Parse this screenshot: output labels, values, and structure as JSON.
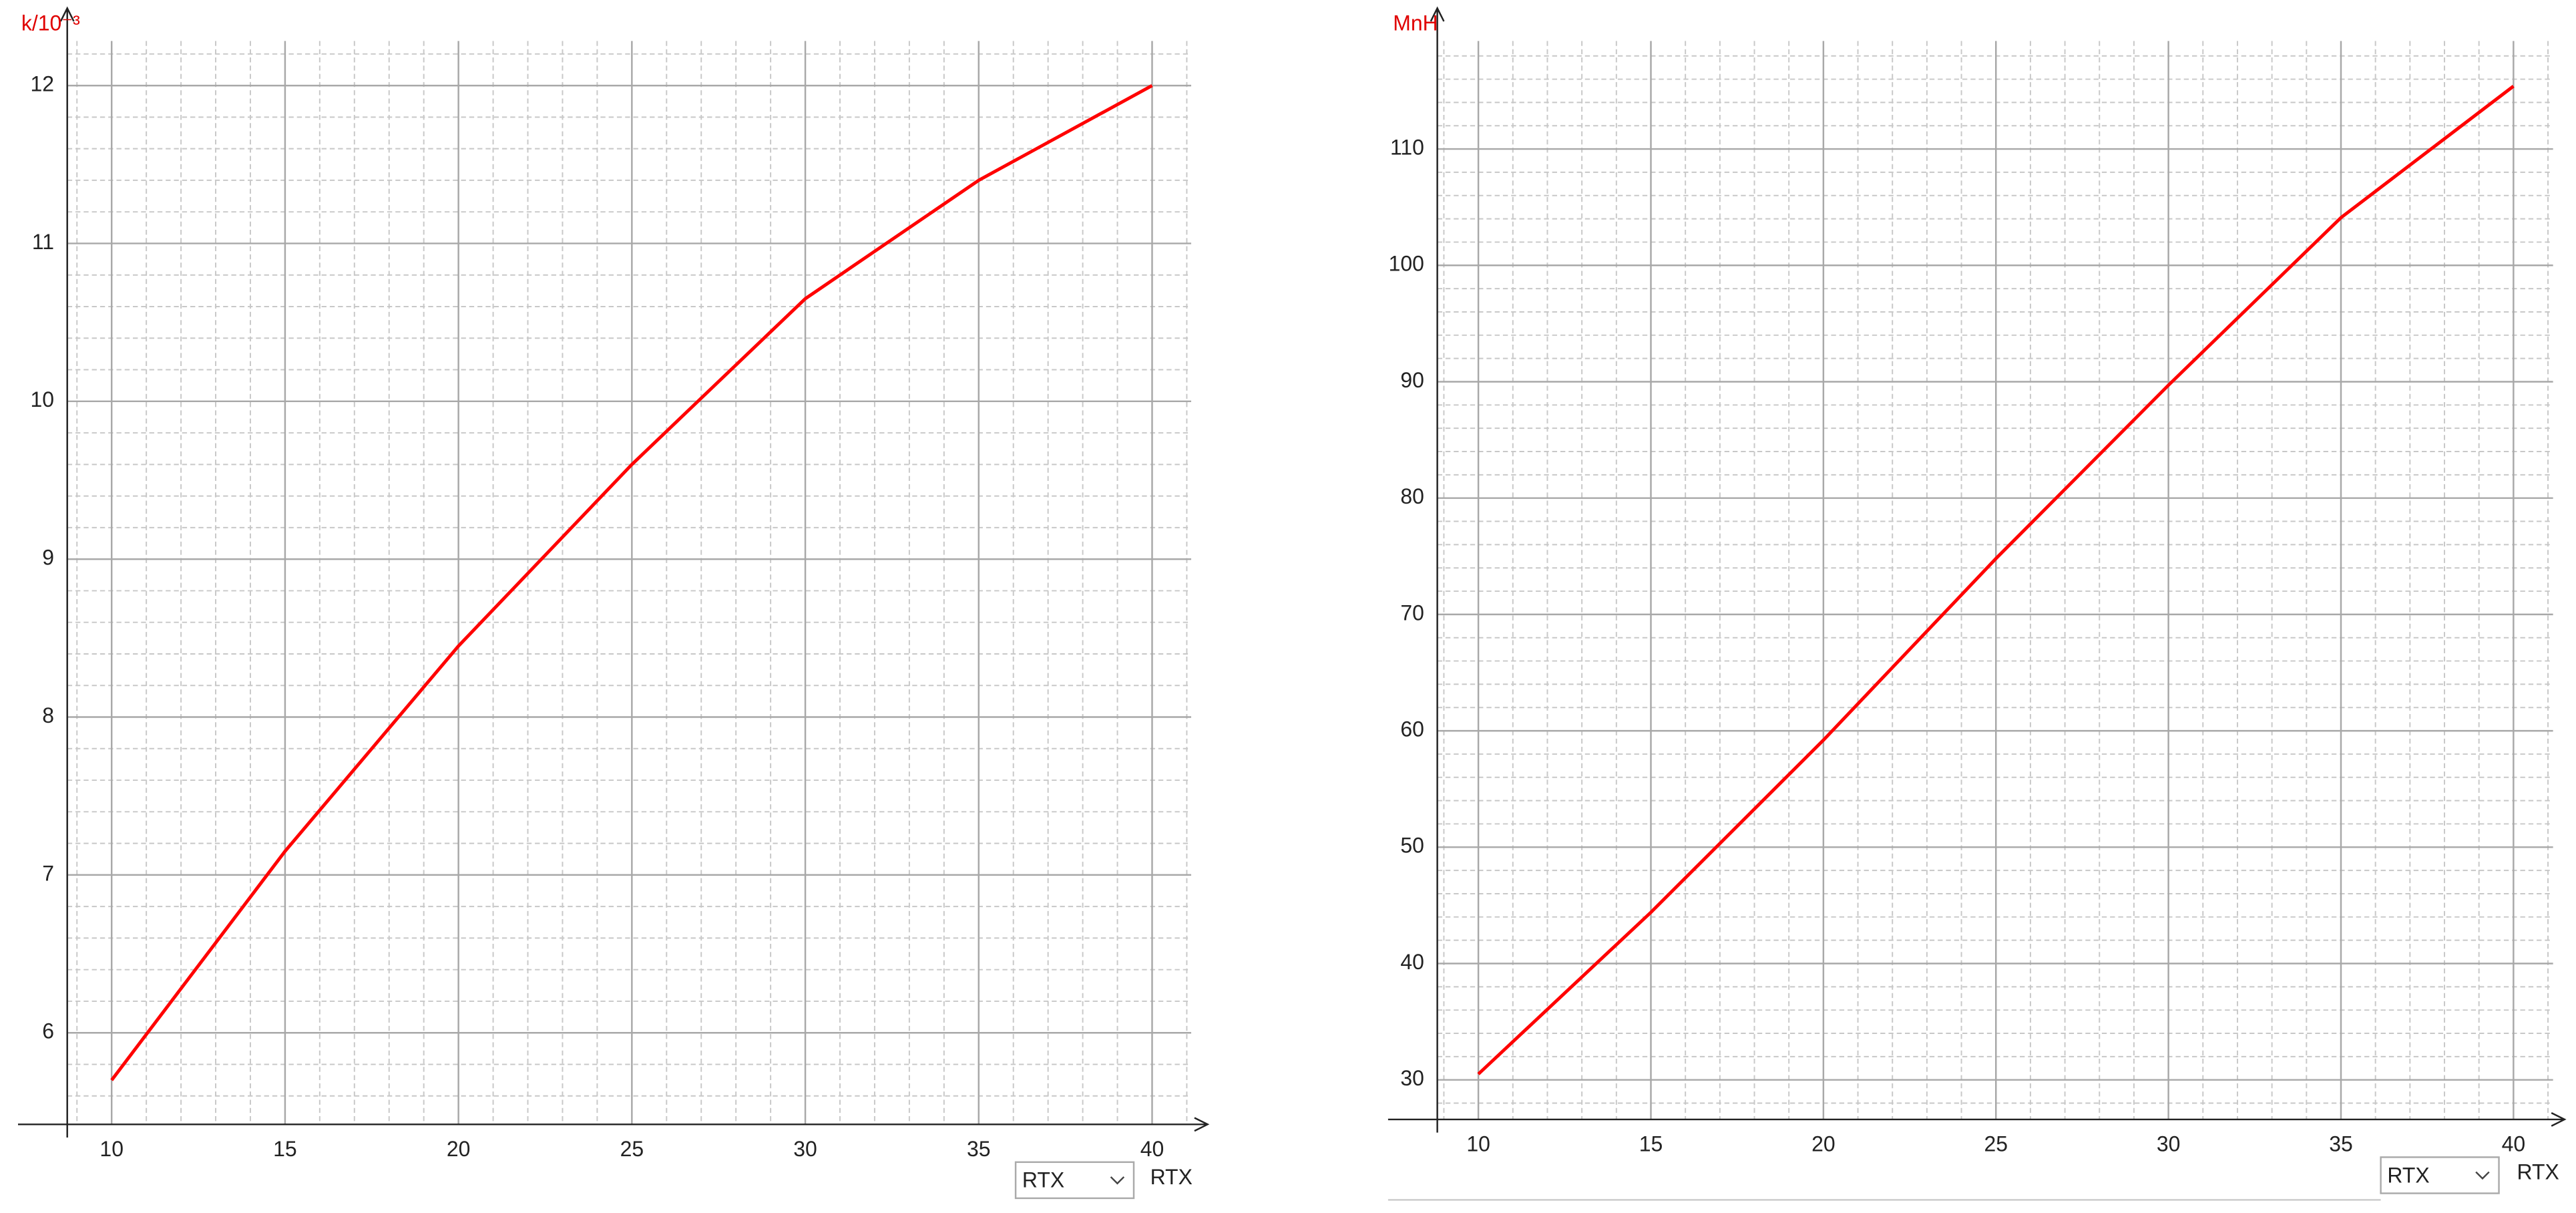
{
  "chart_data": [
    {
      "type": "line",
      "y_label": "k/10⁻³",
      "x_label": "RTX",
      "dropdown": "RTX",
      "x": [
        10,
        15,
        20,
        25,
        30,
        35,
        40
      ],
      "series": [
        {
          "color": "#ff0000",
          "values": [
            5.7,
            7.15,
            8.45,
            9.6,
            10.65,
            11.4,
            12.0
          ]
        }
      ],
      "xlim": [
        8.72,
        41.6
      ],
      "ylim": [
        5.42,
        12.49
      ],
      "xticks": [
        10,
        15,
        20,
        25,
        30,
        35,
        40
      ],
      "yticks": [
        6,
        7,
        8,
        9,
        10,
        11,
        12
      ],
      "grid": true,
      "minor_grid": {
        "x": 1,
        "y": 0.2
      }
    },
    {
      "type": "line",
      "y_label": "MnH",
      "x_label": "RTX",
      "dropdown": "RTX",
      "x": [
        10,
        15,
        20,
        25,
        30,
        35,
        40
      ],
      "series": [
        {
          "color": "#ff0000",
          "values": [
            30.5,
            44.4,
            59.2,
            74.8,
            89.7,
            104.1,
            115.4
          ]
        }
      ],
      "xlim": [
        8.81,
        41.48
      ],
      "ylim": [
        26.6,
        122.1
      ],
      "xticks": [
        10,
        15,
        20,
        25,
        30,
        35,
        40
      ],
      "yticks": [
        30,
        40,
        50,
        60,
        70,
        80,
        90,
        100,
        110
      ],
      "grid": true,
      "minor_grid": {
        "x": 1,
        "y": 2
      }
    }
  ]
}
